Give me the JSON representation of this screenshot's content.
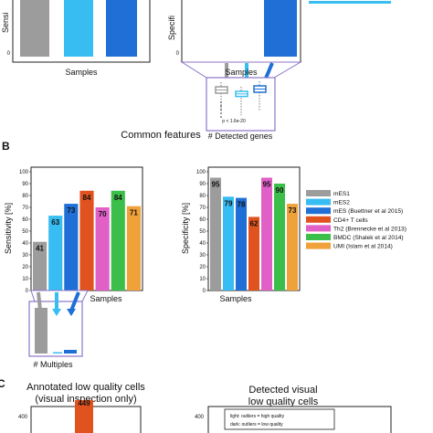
{
  "panel_labels": {
    "b": "B",
    "c": "C"
  },
  "chart_data": [
    {
      "id": "panelA_sensitivity",
      "type": "bar",
      "ylabel": "Sensi",
      "xlabel": "Samples",
      "yticks": [
        0
      ],
      "ylim": [
        0,
        100
      ],
      "colors": [
        "#9c9c9c",
        "#38bdf2",
        "#1f6fd6"
      ],
      "values": [
        100,
        100,
        100
      ]
    },
    {
      "id": "panelA_specificity",
      "type": "bar",
      "ylabel": "Specifi",
      "xlabel": "Samples",
      "yticks": [
        0
      ],
      "ylim": [
        0,
        100
      ],
      "colors": [
        "#1f6fd6"
      ],
      "values": [
        100
      ]
    },
    {
      "id": "panelA_inset",
      "type": "boxplot",
      "xlabel": "# Detected genes",
      "annotation": "p < 1.6e-20",
      "colors": [
        "#9c9c9c",
        "#38bdf2",
        "#1f6fd6"
      ]
    },
    {
      "id": "panelB_sensitivity",
      "type": "bar",
      "title": "Common features",
      "ylabel": "Sensitivity [%]",
      "xlabel": "Samples",
      "yticks": [
        0,
        10,
        20,
        30,
        40,
        50,
        60,
        70,
        80,
        90,
        100
      ],
      "ylim": [
        0,
        100
      ],
      "values": [
        41,
        63,
        73,
        84,
        70,
        84,
        71
      ],
      "colors": [
        "#9c9c9c",
        "#38bdf2",
        "#1f6fd6",
        "#e0531f",
        "#e060c8",
        "#3cbf4a",
        "#f0a13a"
      ],
      "labels": [
        "41",
        "63",
        "73",
        "84",
        "70",
        "84",
        "71"
      ]
    },
    {
      "id": "panelB_specificity",
      "type": "bar",
      "ylabel": "Specificity [%]",
      "xlabel": "Samples",
      "yticks": [
        0,
        10,
        20,
        30,
        40,
        50,
        60,
        70,
        80,
        90,
        100
      ],
      "ylim": [
        0,
        100
      ],
      "values": [
        95,
        79,
        78,
        62,
        95,
        90,
        73
      ],
      "colors": [
        "#9c9c9c",
        "#38bdf2",
        "#1f6fd6",
        "#e0531f",
        "#e060c8",
        "#3cbf4a",
        "#f0a13a"
      ],
      "labels": [
        "95",
        "79",
        "78",
        "62",
        "95",
        "90",
        "73"
      ]
    },
    {
      "id": "panelB_inset",
      "type": "bar",
      "xlabel": "# Multiples",
      "values": [
        100,
        3,
        8
      ],
      "colors": [
        "#9c9c9c",
        "#38bdf2",
        "#1f6fd6"
      ]
    },
    {
      "id": "panelC_annotated",
      "type": "bar",
      "title": "Annotated low quality cells",
      "subtitle": "(visual inspection only)",
      "yticks": [
        400
      ],
      "ylim": [
        0,
        480
      ],
      "values": [
        449
      ],
      "labels": [
        "449"
      ],
      "colors": [
        "#e0531f"
      ]
    },
    {
      "id": "panelC_detected",
      "type": "bar",
      "title": "Detected visual",
      "subtitle": "low quality cells",
      "yticks": [
        400
      ],
      "legend_lines": [
        "light: outliers = high quality",
        "dark: outliers = low quality"
      ]
    }
  ],
  "legend": {
    "placement": "right",
    "entries": [
      {
        "label": "mES1",
        "color": "#9c9c9c"
      },
      {
        "label": "mES2",
        "color": "#38bdf2"
      },
      {
        "label": "mES (Buettner et al 2015)",
        "color": "#1f6fd6"
      },
      {
        "label": "CD4+ T cells",
        "color": "#e0531f"
      },
      {
        "label": "Th2 (Brennecke et al 2013)",
        "color": "#e060c8"
      },
      {
        "label": "BMDC (Shalek et al 2014)",
        "color": "#3cbf4a"
      },
      {
        "label": "UMI (Islam et al 2014)",
        "color": "#f0a13a"
      }
    ]
  }
}
